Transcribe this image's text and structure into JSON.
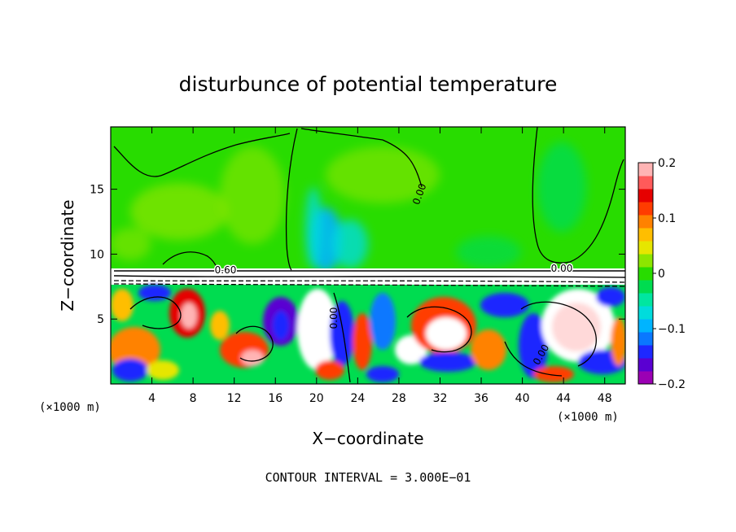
{
  "chart_data": {
    "type": "heatmap",
    "title": "disturbunce of potential temperature",
    "xlabel": "X−coordinate",
    "ylabel": "Z−coordinate",
    "x_unit_left": "(×1000 m)",
    "x_unit_right": "(×1000 m)",
    "footer": "CONTOUR INTERVAL = 3.000E−01",
    "xlim": [
      0,
      50
    ],
    "ylim": [
      0,
      19.8
    ],
    "x_ticks": [
      4,
      8,
      12,
      16,
      20,
      24,
      28,
      32,
      36,
      40,
      44,
      48
    ],
    "x_tick_labels": [
      "4",
      "8",
      "12",
      "16",
      "20",
      "24",
      "28",
      "32",
      "36",
      "40",
      "44",
      "48"
    ],
    "y_ticks": [
      5,
      10,
      15
    ],
    "y_tick_labels": [
      "5",
      "10",
      "15"
    ],
    "contour_labels": [
      {
        "text": "0.60",
        "x": 11.2,
        "z": 8.6
      },
      {
        "text": "0.00",
        "x": 21.8,
        "z": 5.0
      },
      {
        "text": "0.00",
        "x": 30.3,
        "z": 14.5
      },
      {
        "text": "0.00",
        "x": 42.3,
        "z": 2.0
      },
      {
        "text": "0.00",
        "x": 44.0,
        "z": 8.8
      }
    ],
    "colorbar": {
      "min": -0.2,
      "max": 0.2,
      "tick_values": [
        0.2,
        0.1,
        0,
        -0.1,
        -0.2
      ],
      "tick_labels": [
        "0.2",
        "0.1",
        "0",
        "−0.1",
        "−0.2"
      ],
      "colors": [
        "#9b00b4",
        "#5a00d2",
        "#1e28ff",
        "#0a78ff",
        "#00b4ff",
        "#00dcdc",
        "#00e6a0",
        "#00dc50",
        "#28dc00",
        "#8ce600",
        "#e6e600",
        "#ffbe00",
        "#ff8200",
        "#ff3c00",
        "#e60000",
        "#ff5a5a",
        "#ffb4b4"
      ]
    },
    "regions": [
      {
        "name": "upper-layer",
        "z_range": [
          9.2,
          19.8
        ],
        "dominant_value": 0.0,
        "notes": "near-zero field, bluish anomalies near x=18–24"
      },
      {
        "name": "inversion-band",
        "z_range": [
          7.6,
          9.2
        ],
        "notes": "tightly packed contours"
      },
      {
        "name": "lower-layer",
        "z_range": [
          0,
          7.6
        ],
        "value_range": [
          -0.2,
          0.2
        ],
        "notes": "turbulent eddies, saturated values"
      }
    ],
    "grid": false
  }
}
